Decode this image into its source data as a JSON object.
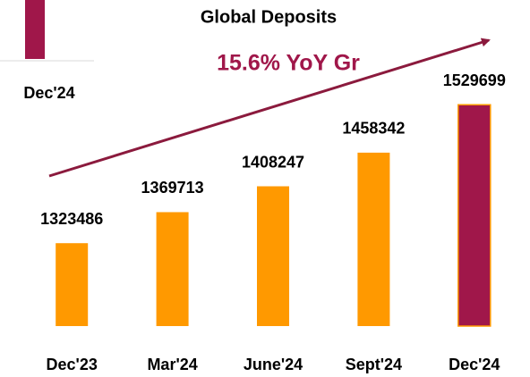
{
  "chart_data": {
    "type": "bar",
    "title": "Global Deposits",
    "subtitle": "15.6% YoY Gr",
    "categories": [
      "Dec'23",
      "Mar'24",
      "June'24",
      "Sept'24",
      "Dec'24"
    ],
    "values": [
      1323486,
      1369713,
      1408247,
      1458342,
      1529699
    ],
    "colors": [
      "#ff9900",
      "#ff9900",
      "#ff9900",
      "#ff9900",
      "#a0174a"
    ],
    "legend": {
      "label": "Dec'24",
      "color": "#a0174a"
    },
    "ylim": [
      1200000,
      1550000
    ]
  }
}
